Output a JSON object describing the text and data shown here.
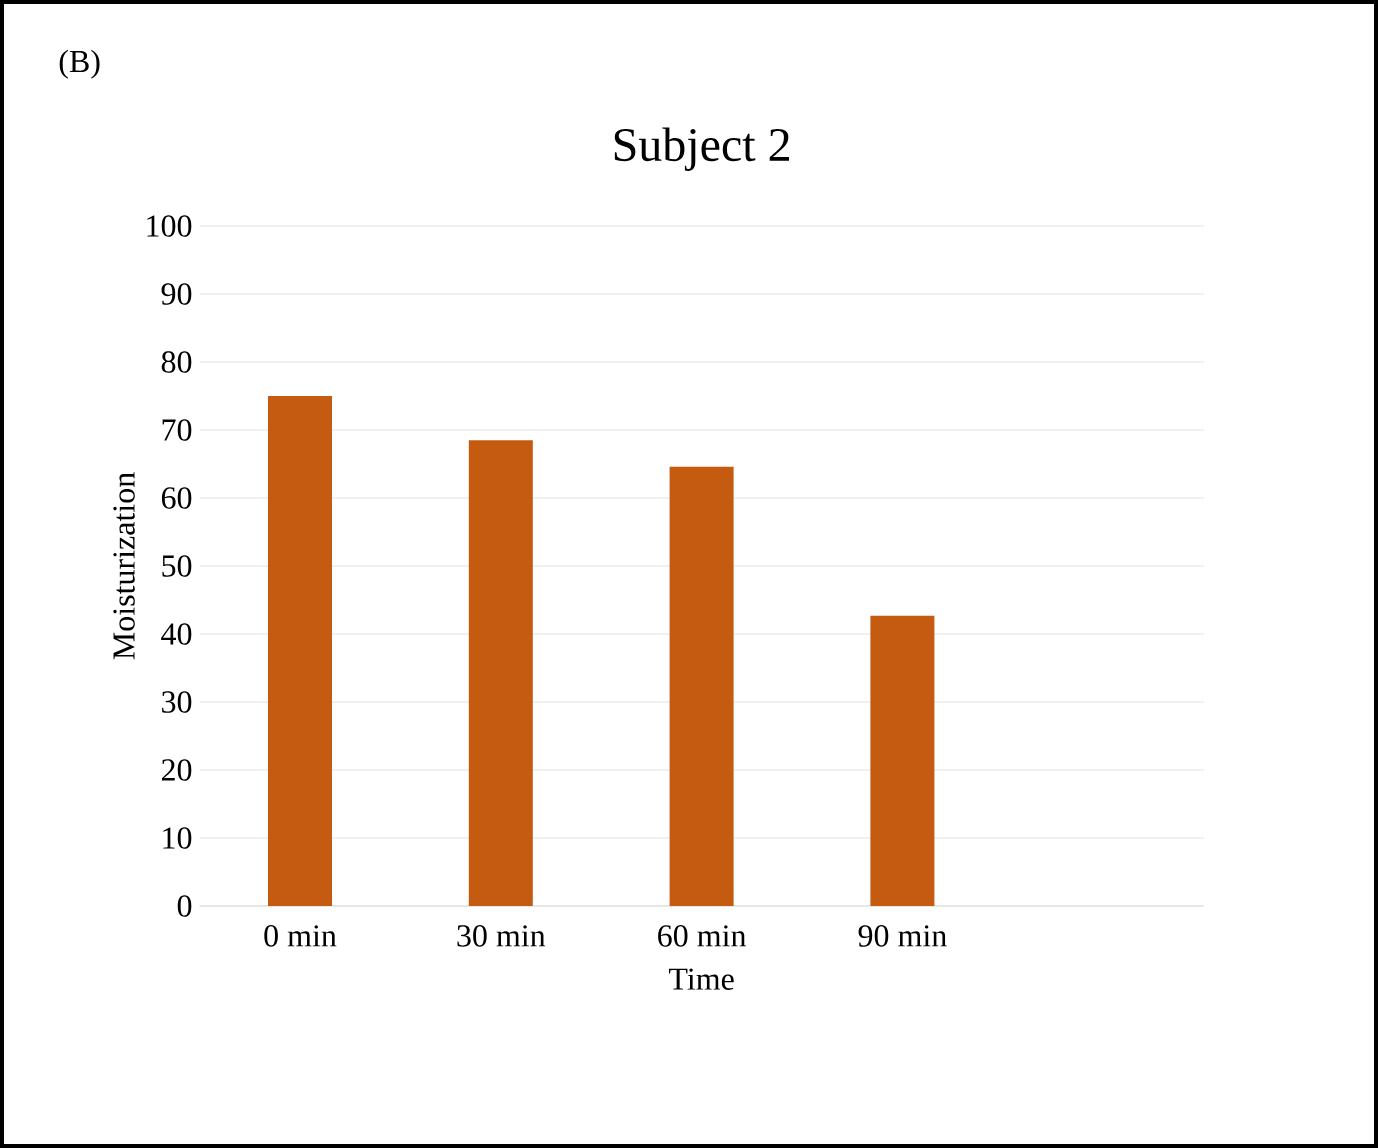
{
  "chart_data": {
    "type": "bar",
    "title": "Subject 2",
    "xlabel": "Time",
    "ylabel": "Moisturization",
    "annotations": [
      "(B)"
    ],
    "categories": [
      "0 min",
      "30 min",
      "60 min",
      "90 min",
      null
    ],
    "values": [
      75,
      68.5,
      64.6,
      42.7,
      null
    ],
    "color": "#c55a11",
    "ylim": [
      0,
      100
    ],
    "yticks": [
      0,
      10,
      20,
      30,
      40,
      50,
      60,
      70,
      80,
      90,
      100
    ],
    "grid": "y"
  }
}
